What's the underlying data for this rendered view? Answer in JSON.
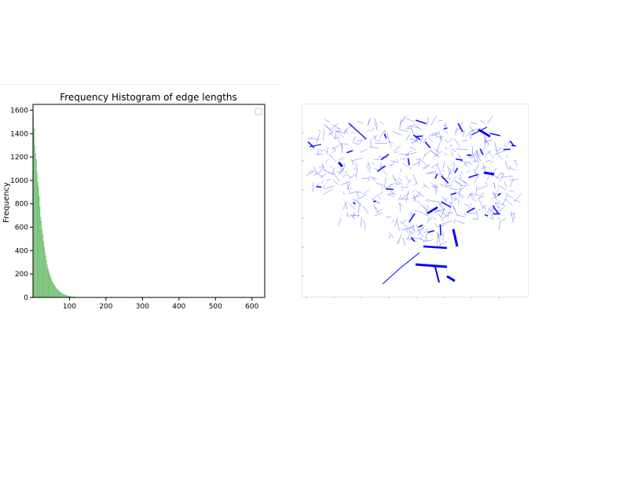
{
  "chart_data": [
    {
      "type": "bar",
      "title": "Frequency Histogram of edge lengths",
      "xlabel": "",
      "ylabel": "Frequency",
      "xlim": [
        0,
        635
      ],
      "ylim": [
        0,
        1650
      ],
      "xticks": [
        100,
        200,
        300,
        400,
        500,
        600
      ],
      "yticks": [
        0,
        200,
        400,
        600,
        800,
        1000,
        1200,
        1400,
        1600
      ],
      "bar_color": "#76c076",
      "bin_width": 2,
      "bins_start": 0,
      "values": [
        1560,
        1450,
        1300,
        1230,
        1180,
        1080,
        990,
        950,
        870,
        780,
        690,
        650,
        580,
        540,
        480,
        430,
        390,
        360,
        320,
        280,
        250,
        230,
        210,
        190,
        170,
        155,
        140,
        128,
        115,
        104,
        95,
        86,
        78,
        71,
        64,
        58,
        52,
        47,
        42,
        38,
        34,
        30,
        27,
        24,
        22,
        20,
        18,
        16,
        14,
        12,
        11,
        10,
        9,
        8,
        7,
        6,
        5,
        5,
        4,
        4,
        3,
        3,
        3,
        2,
        2,
        2,
        2,
        1,
        1,
        1,
        1,
        1,
        1,
        1,
        1,
        1,
        1,
        1,
        1,
        1
      ],
      "legend": "top-right (empty)",
      "grid": false
    },
    {
      "type": "scatter",
      "title": "",
      "description": "network edge plot",
      "line_color": "#0000ff",
      "grid": false,
      "axes": "ticks unlabeled"
    }
  ]
}
